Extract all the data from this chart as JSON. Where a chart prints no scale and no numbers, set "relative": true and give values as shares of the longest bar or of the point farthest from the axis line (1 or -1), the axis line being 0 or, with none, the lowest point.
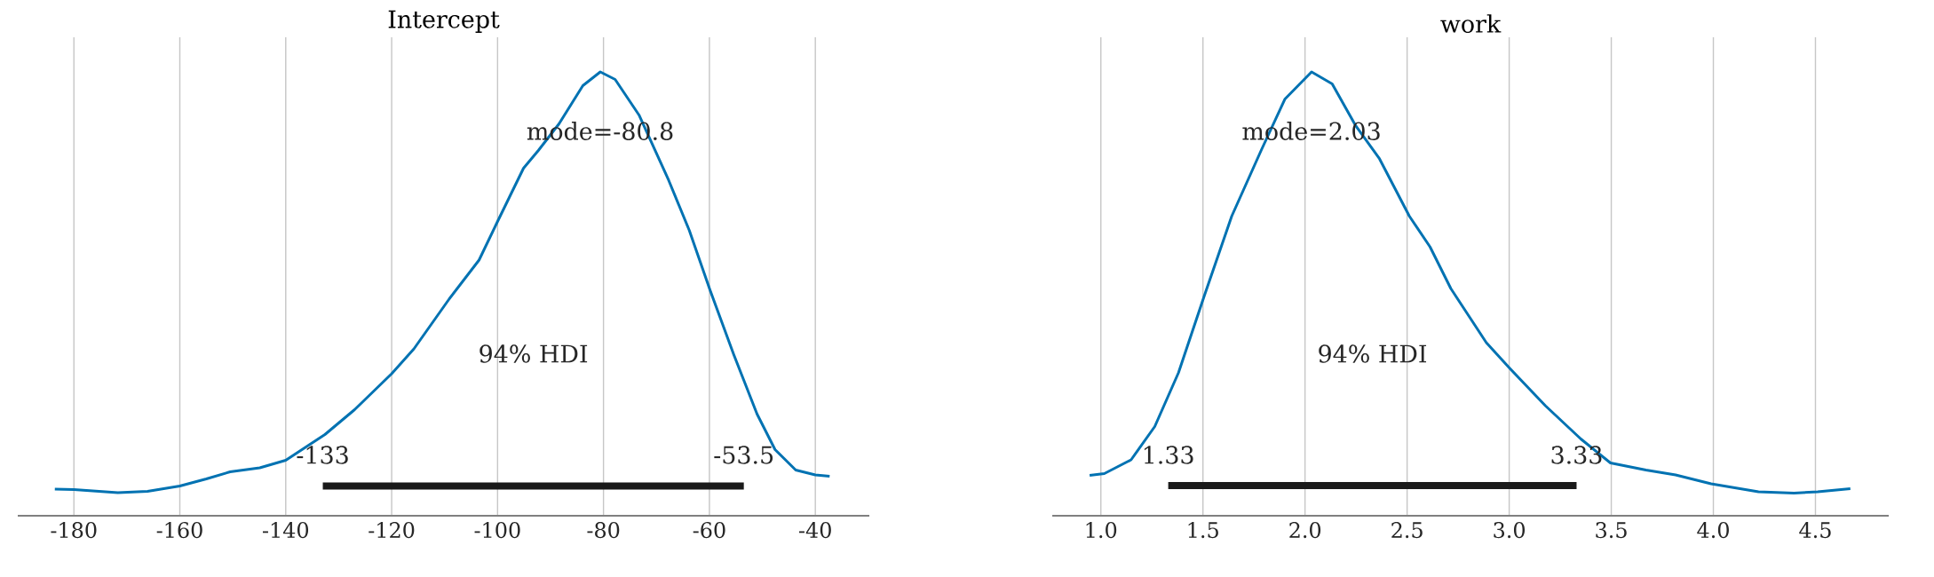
{
  "chart_data": [
    {
      "type": "line",
      "title": "Intercept",
      "relative": true,
      "grid": "x",
      "xlim": [
        -190.6,
        -29.8
      ],
      "xticks": [
        -180,
        -160,
        -140,
        -120,
        -100,
        -80,
        -60,
        -40
      ],
      "series": [
        {
          "color": "#0072b2",
          "x": [
            -183.6,
            -180,
            -171.7,
            -166.1,
            -160,
            -155,
            -150.5,
            -144.9,
            -140,
            -132.6,
            -127,
            -120,
            -115.8,
            -109.1,
            -103.5,
            -100,
            -95.1,
            -92.3,
            -88.4,
            -83.9,
            -80.6,
            -77.8,
            -73.3,
            -67.7,
            -63.8,
            -59.9,
            -55.4,
            -51,
            -47.6,
            -43.7,
            -40,
            -37.3
          ],
          "values": [
            0.06,
            0.059,
            0.052,
            0.055,
            0.067,
            0.083,
            0.099,
            0.108,
            0.125,
            0.183,
            0.239,
            0.32,
            0.376,
            0.489,
            0.576,
            0.663,
            0.783,
            0.823,
            0.883,
            0.969,
            1.0,
            0.983,
            0.903,
            0.756,
            0.643,
            0.509,
            0.363,
            0.229,
            0.149,
            0.103,
            0.092,
            0.089
          ]
        },
        {
          "color": "#1a1a1a",
          "x": [
            -133,
            -53.5
          ],
          "values": [
            0.067,
            0.067
          ]
        }
      ],
      "annotations": [
        "mode=-80.8",
        "94% HDI",
        "-133",
        "-53.5"
      ]
    },
    {
      "type": "line",
      "title": "work",
      "relative": true,
      "grid": "x",
      "xlim": [
        0.762,
        4.859
      ],
      "xticks": [
        {
          "value": 1.0,
          "label": "1.0"
        },
        1.5,
        {
          "value": 2.0,
          "label": "2.0"
        },
        2.5,
        {
          "value": 3.0,
          "label": "3.0"
        },
        3.5,
        {
          "value": 4.0,
          "label": "4.0"
        },
        4.5
      ],
      "series": [
        {
          "color": "#0072b2",
          "x": [
            0.945,
            1.017,
            1.148,
            1.264,
            1.38,
            1.504,
            1.641,
            1.786,
            1.902,
            2.032,
            2.133,
            2.249,
            2.365,
            2.511,
            2.612,
            2.714,
            2.888,
            3.003,
            3.177,
            3.351,
            3.496,
            3.67,
            3.815,
            3.989,
            4.221,
            4.395,
            4.511,
            4.671
          ],
          "values": [
            0.091,
            0.095,
            0.126,
            0.201,
            0.322,
            0.492,
            0.675,
            0.824,
            0.939,
            1.0,
            0.973,
            0.878,
            0.804,
            0.675,
            0.606,
            0.512,
            0.39,
            0.332,
            0.248,
            0.173,
            0.119,
            0.103,
            0.092,
            0.072,
            0.054,
            0.051,
            0.054,
            0.061
          ]
        },
        {
          "color": "#1a1a1a",
          "x": [
            1.33,
            3.33
          ],
          "values": [
            0.068,
            0.068
          ]
        }
      ],
      "annotations": [
        "mode=2.03",
        "94% HDI",
        "1.33",
        "3.33"
      ]
    }
  ]
}
